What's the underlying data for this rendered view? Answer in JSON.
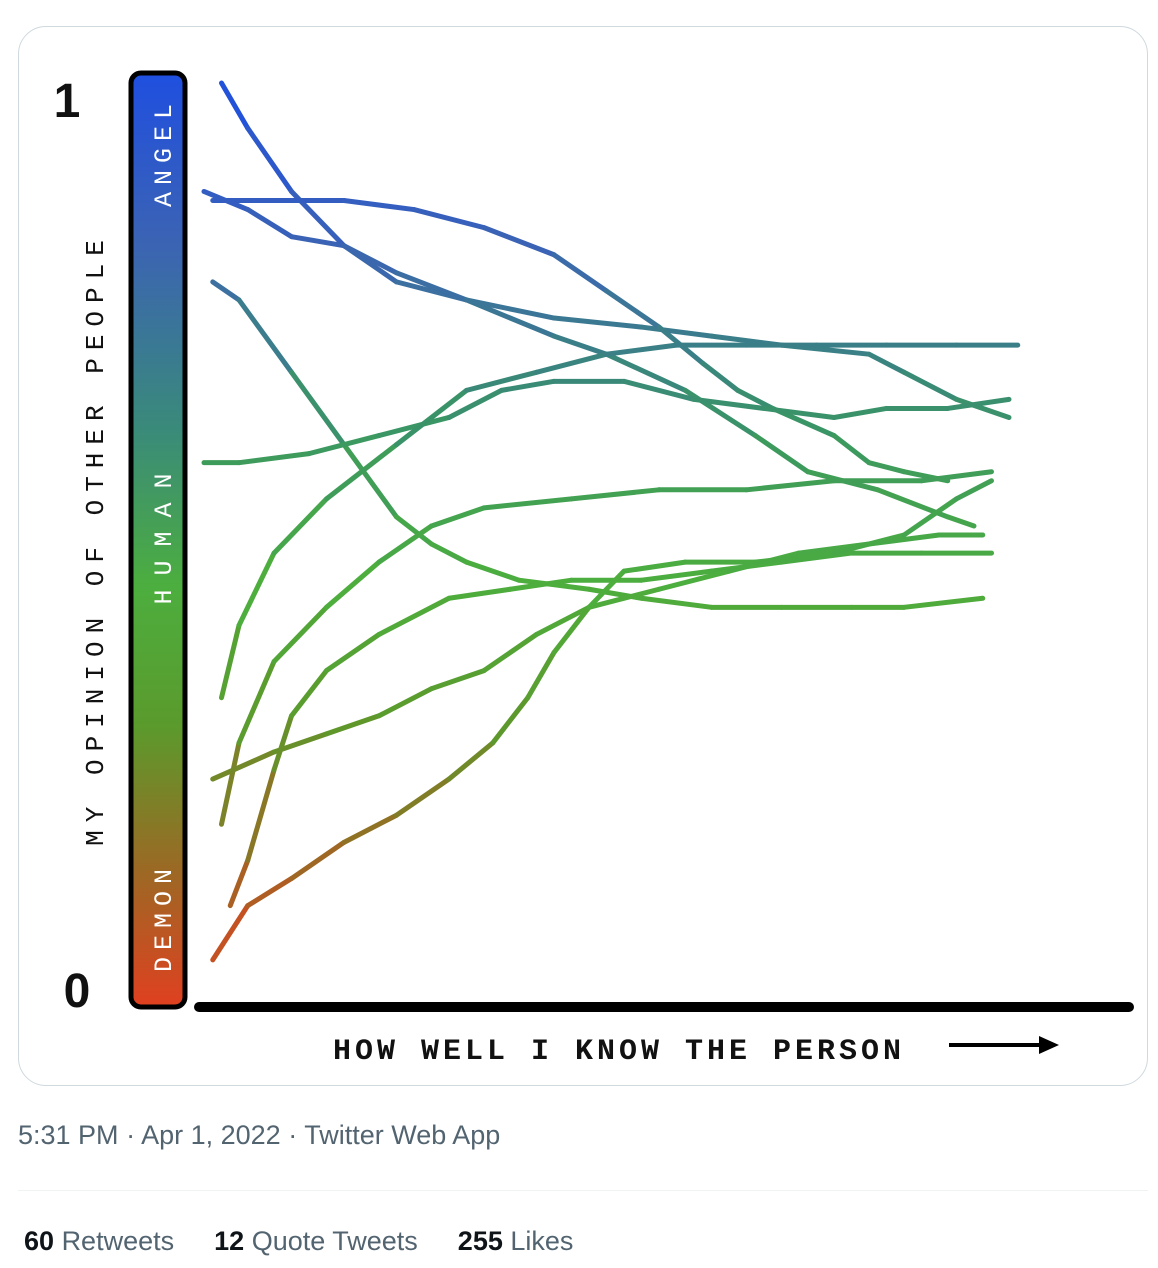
{
  "tweet": {
    "time": "5:31 PM",
    "date": "Apr 1, 2022",
    "source": "Twitter Web App",
    "separator": "·",
    "stats": [
      {
        "count": "60",
        "label": "Retweets"
      },
      {
        "count": "12",
        "label": "Quote Tweets"
      },
      {
        "count": "255",
        "label": "Likes"
      }
    ]
  },
  "chart_data": {
    "type": "line",
    "xlabel": "HOW WELL I KNOW THE PERSON",
    "ylabel": "MY OPINION OF OTHER PEOPLE",
    "ylim": [
      0,
      1
    ],
    "y_ticks": [
      "0",
      "1"
    ],
    "scale_labels": [
      "DEMON",
      "HUMAN",
      "ANGEL"
    ],
    "grid": false,
    "series": [
      {
        "values": [
          [
            0.02,
            1.0
          ],
          [
            0.05,
            0.95
          ],
          [
            0.1,
            0.88
          ],
          [
            0.16,
            0.82
          ],
          [
            0.22,
            0.78
          ],
          [
            0.3,
            0.76
          ],
          [
            0.4,
            0.72
          ],
          [
            0.46,
            0.7
          ],
          [
            0.55,
            0.66
          ],
          [
            0.63,
            0.61
          ],
          [
            0.69,
            0.57
          ],
          [
            0.77,
            0.55
          ],
          [
            0.85,
            0.52
          ],
          [
            0.88,
            0.51
          ]
        ]
      },
      {
        "values": [
          [
            0.0,
            0.88
          ],
          [
            0.05,
            0.86
          ],
          [
            0.1,
            0.83
          ],
          [
            0.16,
            0.82
          ],
          [
            0.22,
            0.79
          ],
          [
            0.3,
            0.76
          ],
          [
            0.4,
            0.74
          ],
          [
            0.5,
            0.73
          ],
          [
            0.58,
            0.72
          ],
          [
            0.66,
            0.71
          ],
          [
            0.76,
            0.7
          ],
          [
            0.8,
            0.68
          ],
          [
            0.86,
            0.65
          ],
          [
            0.92,
            0.63
          ]
        ]
      },
      {
        "values": [
          [
            0.01,
            0.87
          ],
          [
            0.08,
            0.87
          ],
          [
            0.16,
            0.87
          ],
          [
            0.24,
            0.86
          ],
          [
            0.32,
            0.84
          ],
          [
            0.4,
            0.81
          ],
          [
            0.46,
            0.77
          ],
          [
            0.52,
            0.73
          ],
          [
            0.57,
            0.69
          ],
          [
            0.61,
            0.66
          ],
          [
            0.65,
            0.64
          ],
          [
            0.72,
            0.61
          ],
          [
            0.76,
            0.58
          ],
          [
            0.8,
            0.57
          ],
          [
            0.85,
            0.56
          ]
        ]
      },
      {
        "values": [
          [
            0.01,
            0.78
          ],
          [
            0.04,
            0.76
          ],
          [
            0.1,
            0.68
          ],
          [
            0.16,
            0.6
          ],
          [
            0.22,
            0.52
          ],
          [
            0.26,
            0.49
          ],
          [
            0.3,
            0.47
          ],
          [
            0.36,
            0.45
          ],
          [
            0.44,
            0.44
          ],
          [
            0.5,
            0.43
          ],
          [
            0.58,
            0.42
          ],
          [
            0.66,
            0.42
          ],
          [
            0.74,
            0.42
          ],
          [
            0.8,
            0.42
          ],
          [
            0.89,
            0.43
          ]
        ]
      },
      {
        "values": [
          [
            0.0,
            0.58
          ],
          [
            0.04,
            0.58
          ],
          [
            0.12,
            0.59
          ],
          [
            0.2,
            0.61
          ],
          [
            0.28,
            0.63
          ],
          [
            0.34,
            0.66
          ],
          [
            0.4,
            0.67
          ],
          [
            0.48,
            0.67
          ],
          [
            0.56,
            0.65
          ],
          [
            0.64,
            0.64
          ],
          [
            0.72,
            0.63
          ],
          [
            0.78,
            0.64
          ],
          [
            0.85,
            0.64
          ],
          [
            0.92,
            0.65
          ]
        ]
      },
      {
        "values": [
          [
            0.02,
            0.32
          ],
          [
            0.04,
            0.4
          ],
          [
            0.08,
            0.48
          ],
          [
            0.14,
            0.54
          ],
          [
            0.22,
            0.6
          ],
          [
            0.3,
            0.66
          ],
          [
            0.38,
            0.68
          ],
          [
            0.46,
            0.7
          ],
          [
            0.54,
            0.71
          ],
          [
            0.62,
            0.71
          ],
          [
            0.7,
            0.71
          ],
          [
            0.78,
            0.71
          ],
          [
            0.86,
            0.71
          ],
          [
            0.93,
            0.71
          ]
        ]
      },
      {
        "values": [
          [
            0.02,
            0.18
          ],
          [
            0.04,
            0.27
          ],
          [
            0.08,
            0.36
          ],
          [
            0.14,
            0.42
          ],
          [
            0.2,
            0.47
          ],
          [
            0.26,
            0.51
          ],
          [
            0.32,
            0.53
          ],
          [
            0.42,
            0.54
          ],
          [
            0.52,
            0.55
          ],
          [
            0.62,
            0.55
          ],
          [
            0.72,
            0.56
          ],
          [
            0.82,
            0.56
          ],
          [
            0.9,
            0.57
          ]
        ]
      },
      {
        "values": [
          [
            0.03,
            0.09
          ],
          [
            0.05,
            0.14
          ],
          [
            0.08,
            0.24
          ],
          [
            0.1,
            0.3
          ],
          [
            0.14,
            0.35
          ],
          [
            0.2,
            0.39
          ],
          [
            0.28,
            0.43
          ],
          [
            0.35,
            0.44
          ],
          [
            0.42,
            0.45
          ],
          [
            0.5,
            0.45
          ],
          [
            0.58,
            0.46
          ],
          [
            0.66,
            0.47
          ],
          [
            0.74,
            0.48
          ],
          [
            0.82,
            0.48
          ],
          [
            0.9,
            0.48
          ]
        ]
      },
      {
        "values": [
          [
            0.01,
            0.23
          ],
          [
            0.08,
            0.26
          ],
          [
            0.14,
            0.28
          ],
          [
            0.2,
            0.3
          ],
          [
            0.26,
            0.33
          ],
          [
            0.32,
            0.35
          ],
          [
            0.38,
            0.39
          ],
          [
            0.44,
            0.42
          ],
          [
            0.52,
            0.44
          ],
          [
            0.6,
            0.46
          ],
          [
            0.68,
            0.48
          ],
          [
            0.76,
            0.49
          ],
          [
            0.84,
            0.5
          ],
          [
            0.89,
            0.5
          ]
        ]
      },
      {
        "values": [
          [
            0.01,
            0.03
          ],
          [
            0.05,
            0.09
          ],
          [
            0.1,
            0.12
          ],
          [
            0.16,
            0.16
          ],
          [
            0.22,
            0.19
          ],
          [
            0.28,
            0.23
          ],
          [
            0.33,
            0.27
          ],
          [
            0.37,
            0.32
          ],
          [
            0.4,
            0.37
          ],
          [
            0.44,
            0.42
          ],
          [
            0.48,
            0.46
          ],
          [
            0.55,
            0.47
          ],
          [
            0.63,
            0.47
          ],
          [
            0.72,
            0.48
          ],
          [
            0.8,
            0.5
          ],
          [
            0.86,
            0.54
          ],
          [
            0.9,
            0.56
          ]
        ]
      }
    ]
  }
}
